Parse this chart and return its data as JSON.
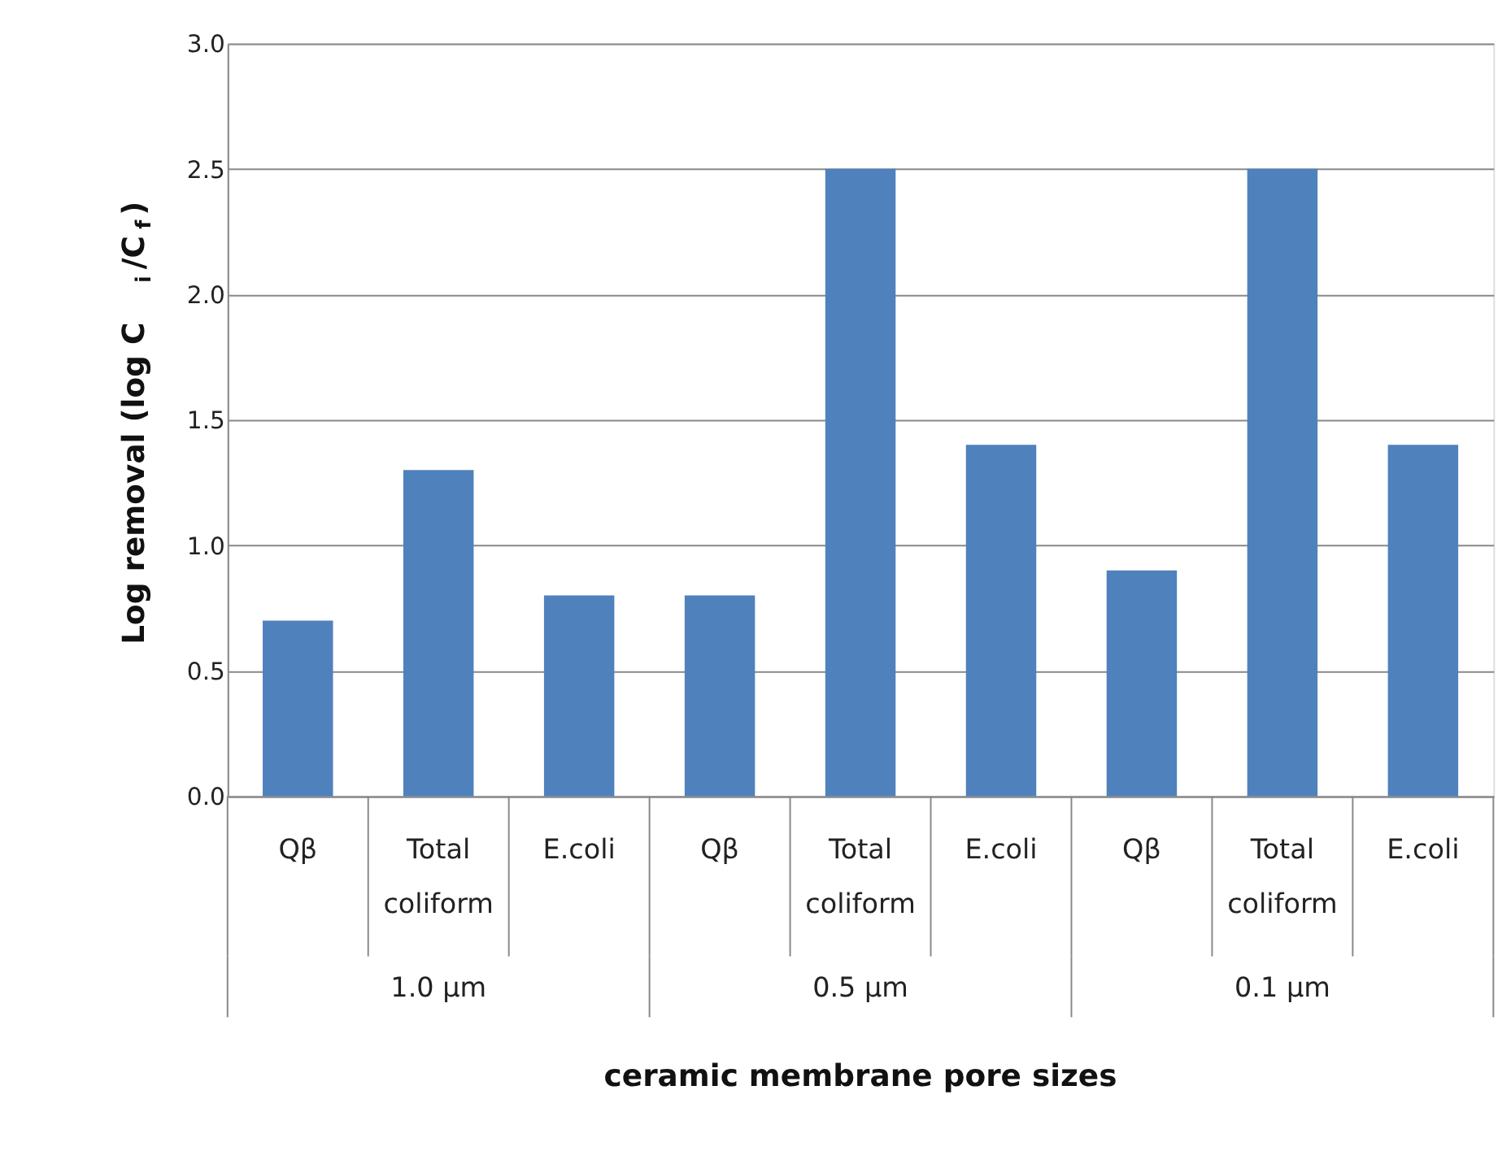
{
  "chart_data": {
    "type": "bar",
    "xlabel": "ceramic membrane pore sizes",
    "ylabel": "Log removal (log C$_{i}$/C$_{f}$)",
    "categories": [
      "Qβ",
      "Total coliform",
      "E.coli",
      "Qβ",
      "Total coliform",
      "E.coli",
      "Qβ",
      "Total coliform",
      "E.coli"
    ],
    "values": [
      0.7,
      1.3,
      0.8,
      0.8,
      2.5,
      1.4,
      0.9,
      2.5,
      1.4
    ],
    "color": "#4f81bd",
    "ylim": [
      0,
      3
    ],
    "yticks": [
      {
        "value": 0,
        "label": "0.0"
      },
      0.5,
      {
        "value": 1,
        "label": "1.0"
      },
      1.5,
      {
        "value": 2,
        "label": "2.0"
      },
      2.5,
      {
        "value": 3,
        "label": "3.0"
      }
    ],
    "grid": "y",
    "annotations": [
      "1.0 µm",
      "0.5 µm",
      "0.1 µm"
    ]
  }
}
